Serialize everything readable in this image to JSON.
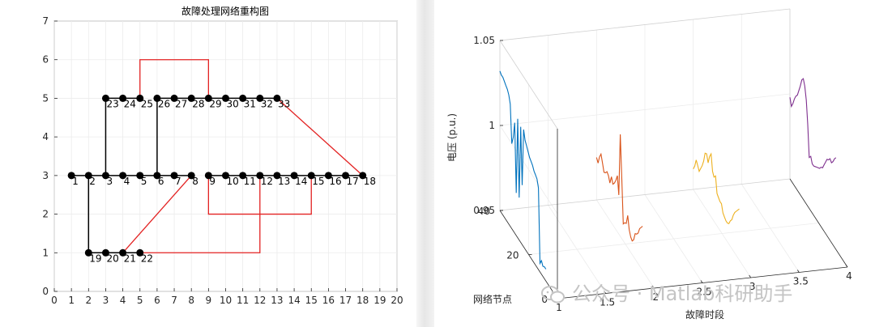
{
  "chart_data": [
    {
      "type": "network",
      "title": "故障处理网络重构图",
      "xlim": [
        0,
        20
      ],
      "ylim": [
        0,
        7
      ],
      "xticks": [
        0,
        1,
        2,
        3,
        4,
        5,
        6,
        7,
        8,
        9,
        10,
        11,
        12,
        13,
        14,
        15,
        16,
        17,
        18,
        19,
        20
      ],
      "yticks": [
        0,
        1,
        2,
        3,
        4,
        5,
        6,
        7
      ],
      "grid": true,
      "nodes": [
        {
          "id": "1",
          "x": 1,
          "y": 3
        },
        {
          "id": "2",
          "x": 2,
          "y": 3
        },
        {
          "id": "3",
          "x": 3,
          "y": 3
        },
        {
          "id": "4",
          "x": 4,
          "y": 3
        },
        {
          "id": "5",
          "x": 5,
          "y": 3
        },
        {
          "id": "6",
          "x": 6,
          "y": 3
        },
        {
          "id": "7",
          "x": 7,
          "y": 3
        },
        {
          "id": "8",
          "x": 8,
          "y": 3
        },
        {
          "id": "9",
          "x": 9,
          "y": 3
        },
        {
          "id": "10",
          "x": 10,
          "y": 3
        },
        {
          "id": "11",
          "x": 11,
          "y": 3
        },
        {
          "id": "12",
          "x": 12,
          "y": 3
        },
        {
          "id": "13",
          "x": 13,
          "y": 3
        },
        {
          "id": "14",
          "x": 14,
          "y": 3
        },
        {
          "id": "15",
          "x": 15,
          "y": 3
        },
        {
          "id": "16",
          "x": 16,
          "y": 3
        },
        {
          "id": "17",
          "x": 17,
          "y": 3
        },
        {
          "id": "18",
          "x": 18,
          "y": 3
        },
        {
          "id": "19",
          "x": 2,
          "y": 1
        },
        {
          "id": "20",
          "x": 3,
          "y": 1
        },
        {
          "id": "21",
          "x": 4,
          "y": 1
        },
        {
          "id": "22",
          "x": 5,
          "y": 1
        },
        {
          "id": "23",
          "x": 3,
          "y": 5
        },
        {
          "id": "24",
          "x": 4,
          "y": 5
        },
        {
          "id": "25",
          "x": 5,
          "y": 5
        },
        {
          "id": "26",
          "x": 6,
          "y": 5
        },
        {
          "id": "27",
          "x": 7,
          "y": 5
        },
        {
          "id": "28",
          "x": 8,
          "y": 5
        },
        {
          "id": "29",
          "x": 9,
          "y": 5
        },
        {
          "id": "30",
          "x": 10,
          "y": 5
        },
        {
          "id": "31",
          "x": 11,
          "y": 5
        },
        {
          "id": "32",
          "x": 12,
          "y": 5
        },
        {
          "id": "33",
          "x": 13,
          "y": 5
        }
      ],
      "black_edges": [
        [
          [
            1,
            3
          ],
          [
            8,
            3
          ]
        ],
        [
          [
            9,
            3
          ],
          [
            18,
            3
          ]
        ],
        [
          [
            2,
            3
          ],
          [
            2,
            1
          ]
        ],
        [
          [
            2,
            1
          ],
          [
            5,
            1
          ]
        ],
        [
          [
            3,
            3
          ],
          [
            3,
            5
          ]
        ],
        [
          [
            3,
            5
          ],
          [
            5,
            5
          ]
        ],
        [
          [
            6,
            5
          ],
          [
            9,
            5
          ]
        ],
        [
          [
            9,
            5
          ],
          [
            13,
            5
          ]
        ],
        [
          [
            6,
            3
          ],
          [
            6,
            5
          ]
        ]
      ],
      "red_edges": [
        [
          [
            5,
            5
          ],
          [
            5,
            6
          ],
          [
            9,
            6
          ],
          [
            9,
            5
          ]
        ],
        [
          [
            13,
            5
          ],
          [
            18,
            3
          ]
        ],
        [
          [
            4,
            1
          ],
          [
            8,
            3
          ]
        ],
        [
          [
            5,
            1
          ],
          [
            12,
            1
          ],
          [
            12,
            3
          ]
        ],
        [
          [
            9,
            3
          ],
          [
            9,
            2
          ],
          [
            15,
            2
          ],
          [
            15,
            3
          ]
        ]
      ]
    },
    {
      "type": "line3d",
      "xlabel": "故障时段",
      "ylabel": "网络节点",
      "zlabel": "电压 (p.u.)",
      "xlim": [
        1,
        4
      ],
      "ylim": [
        0,
        40
      ],
      "zlim": [
        0.95,
        1.05
      ],
      "xticks": [
        "1",
        "1.5",
        "2",
        "2.5",
        "3",
        "3.5",
        "4"
      ],
      "yticks": [
        "0",
        "20",
        "40"
      ],
      "zticks": [
        "0.95",
        "1",
        "1.05"
      ],
      "series": [
        {
          "color": "#0072BD",
          "x": 1,
          "values": [
            1.032,
            1.031,
            1.031,
            1.03,
            1.029,
            1.028,
            1.026,
            1.022,
            1.0,
            1.005,
            1.015,
            0.975,
            1.02,
            0.975,
            1.018,
            0.985,
            1.019,
            1.014,
            1.012,
            1.01,
            1.008,
            1.007,
            1.006,
            1.004,
            1.003,
            1.002,
            0.998,
            0.955,
            0.958,
            0.956,
            0.957,
            0.957
          ]
        },
        {
          "color": "#D95319",
          "x": 2,
          "values": [
            0.975,
            0.973,
            0.978,
            0.981,
            0.977,
            0.973,
            0.974,
            0.976,
            0.975,
            0.972,
            0.977,
            0.974,
            0.976,
            0.979,
            0.983,
            0.973,
            1.01,
            0.985,
            0.96,
            0.962,
            0.963,
            0.969,
            0.962,
            0.959,
            0.958,
            0.96,
            0.965,
            0.966,
            0.968,
            0.972,
            0.974,
            0.976
          ]
        },
        {
          "color": "#EDB120",
          "x": 3,
          "values": [
            0.962,
            0.965,
            0.97,
            0.968,
            0.966,
            0.969,
            0.972,
            0.976,
            0.982,
            0.983,
            0.979,
            0.984,
            0.987,
            0.978,
            0.976,
            0.978,
            0.969,
            0.968,
            0.967,
            0.967,
            0.963,
            0.962,
            0.961,
            0.961,
            0.962,
            0.965,
            0.967,
            0.971,
            0.974,
            0.976,
            0.978,
            0.98
          ]
        },
        {
          "color": "#7E2F8E",
          "x": 4,
          "values": [
            0.998,
            0.994,
            0.997,
            1.001,
            1.004,
            1.006,
            1.01,
            1.014,
            1.019,
            1.021,
            1.018,
            1.011,
            0.998,
            0.98,
            0.982,
            0.979,
            0.979,
            0.98,
            0.981,
            0.982,
            0.983,
            0.985,
            0.986,
            0.989,
            0.992,
            0.995,
            0.996,
            0.998,
            0.997,
            0.999,
            1.002,
            1.004
          ]
        }
      ]
    }
  ],
  "watermark": {
    "text": "公众号 · Matlab科研助手",
    "icon": "wechat-icon"
  }
}
